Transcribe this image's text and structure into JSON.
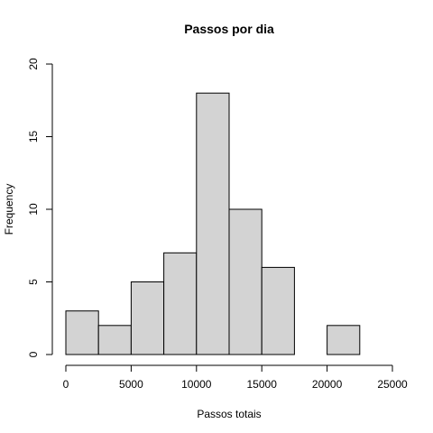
{
  "chart_data": {
    "type": "bar",
    "title": "Passos por dia",
    "xlabel": "Passos totais",
    "ylabel": "Frequency",
    "bins": [
      {
        "from": 0,
        "to": 2500,
        "count": 3
      },
      {
        "from": 2500,
        "to": 5000,
        "count": 2
      },
      {
        "from": 5000,
        "to": 7500,
        "count": 5
      },
      {
        "from": 7500,
        "to": 10000,
        "count": 7
      },
      {
        "from": 10000,
        "to": 12500,
        "count": 18
      },
      {
        "from": 12500,
        "to": 15000,
        "count": 10
      },
      {
        "from": 15000,
        "to": 17500,
        "count": 6
      },
      {
        "from": 17500,
        "to": 20000,
        "count": 0
      },
      {
        "from": 20000,
        "to": 22500,
        "count": 2
      },
      {
        "from": 22500,
        "to": 25000,
        "count": 0
      }
    ],
    "xlim": [
      0,
      25000
    ],
    "ylim": [
      0,
      20
    ],
    "x_ticks": [
      "0",
      "5000",
      "10000",
      "15000",
      "20000",
      "25000"
    ],
    "y_ticks": [
      "0",
      "5",
      "10",
      "15",
      "20"
    ],
    "bar_color": "#d3d3d3",
    "grid": false
  }
}
